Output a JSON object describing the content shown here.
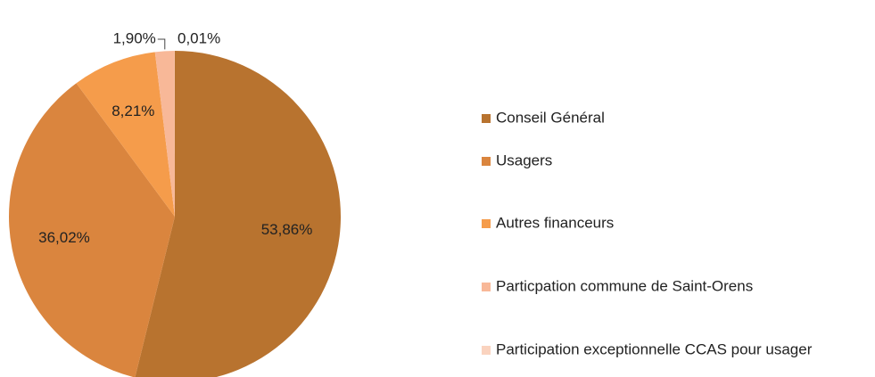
{
  "chart_data": {
    "type": "pie",
    "categories": [
      "Conseil Général",
      "Usagers",
      "Autres financeurs",
      "Particpation commune de Saint-Orens",
      "Participation exceptionnelle CCAS pour usager"
    ],
    "values": [
      53.86,
      36.02,
      8.21,
      1.9,
      0.01
    ],
    "value_labels": [
      "53,86%",
      "36,02%",
      "8,21%",
      "1,90%",
      "0,01%"
    ],
    "colors": [
      "#B8732F",
      "#DA853E",
      "#F59C4B",
      "#F8B898",
      "#FAD3BF"
    ],
    "legend": "right"
  }
}
